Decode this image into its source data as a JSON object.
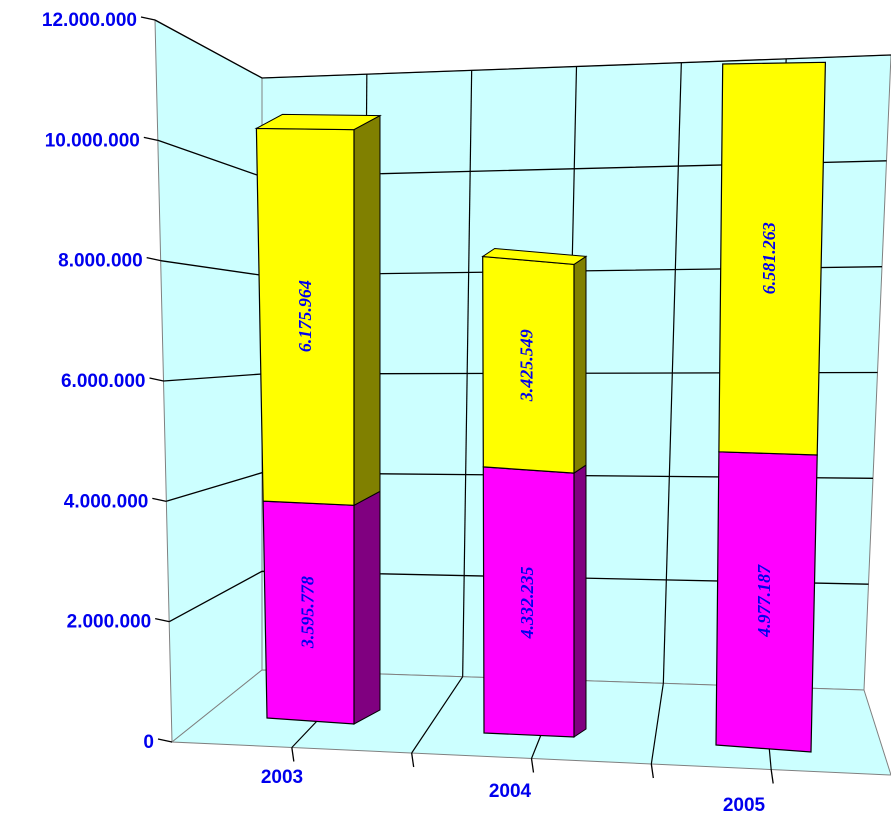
{
  "chart_data": {
    "type": "bar",
    "stacked": true,
    "three_d": true,
    "categories": [
      "2003",
      "2004",
      "2005"
    ],
    "series": [
      {
        "values": [
          3595778,
          4332235,
          4977187
        ],
        "labels": [
          "3.595.778",
          "4.332.235",
          "4.977.187"
        ],
        "color": "#ff00ff",
        "side_color": "#800080"
      },
      {
        "values": [
          6175964,
          3425549,
          6581263
        ],
        "labels": [
          "6.175.964",
          "3.425.549",
          "6.581.263"
        ],
        "color": "#ffff00",
        "side_color": "#808000"
      }
    ],
    "ylim": [
      0,
      12000000
    ],
    "yticks": [
      "0",
      "2.000.000",
      "4.000.000",
      "6.000.000",
      "8.000.000",
      "10.000.000",
      "12.000.000"
    ],
    "grid": true,
    "wall_color": "#ccffff",
    "floor_color": "#ccffff",
    "legend": "none",
    "title": "",
    "xlabel": "",
    "ylabel": ""
  }
}
